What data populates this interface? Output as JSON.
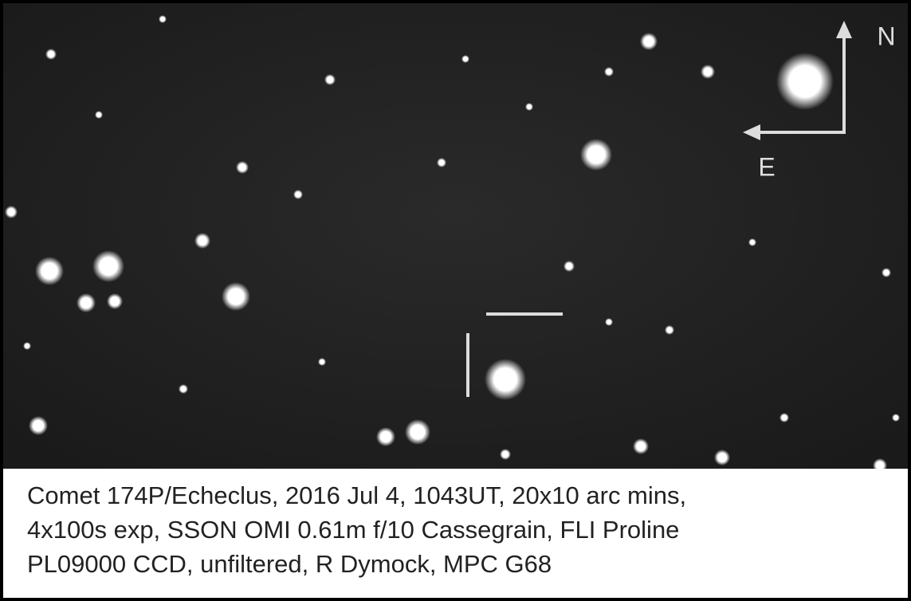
{
  "image": {
    "compass": {
      "north": "N",
      "east": "E"
    }
  },
  "caption": {
    "lines": [
      "Comet 174P/Echeclus, 2016 Jul 4, 1043UT, 20x10 arc mins,",
      "4x100s exp, SSON OMI 0.61m f/10 Cassegrain, FLI Proline",
      "PL09000 CCD, unfiltered, R Dymock, MPC G68"
    ]
  }
}
